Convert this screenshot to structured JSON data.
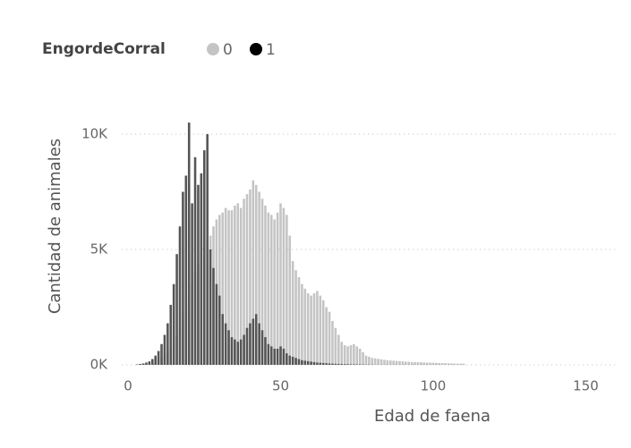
{
  "chart_data": {
    "type": "bar",
    "x_label": "Edad de faena",
    "y_label": "Cantidad de animales",
    "legend_title": "EngordeCorral",
    "xlim": [
      -2,
      160
    ],
    "xticks": [
      0,
      50,
      100,
      150
    ],
    "ylim": [
      0,
      11000
    ],
    "yticks": [
      {
        "value": 0,
        "label": "0K"
      },
      {
        "value": 5000,
        "label": "5K"
      },
      {
        "value": 10000,
        "label": "10K"
      }
    ],
    "grid": true,
    "x": [
      3,
      4,
      5,
      6,
      7,
      8,
      9,
      10,
      11,
      12,
      13,
      14,
      15,
      16,
      17,
      18,
      19,
      20,
      21,
      22,
      23,
      24,
      25,
      26,
      27,
      28,
      29,
      30,
      31,
      32,
      33,
      34,
      35,
      36,
      37,
      38,
      39,
      40,
      41,
      42,
      43,
      44,
      45,
      46,
      47,
      48,
      49,
      50,
      51,
      52,
      53,
      54,
      55,
      56,
      57,
      58,
      59,
      60,
      61,
      62,
      63,
      64,
      65,
      66,
      67,
      68,
      69,
      70,
      71,
      72,
      73,
      74,
      75,
      76,
      77,
      78,
      79,
      80,
      81,
      82,
      83,
      84,
      85,
      86,
      87,
      88,
      89,
      90,
      91,
      92,
      93,
      94,
      95,
      96,
      97,
      98,
      99,
      100,
      101,
      102,
      103,
      104,
      105,
      106,
      107,
      108,
      109,
      110
    ],
    "series": [
      {
        "name": "0",
        "color": "#c4c4c4",
        "values": [
          0,
          10,
          20,
          40,
          60,
          100,
          150,
          250,
          350,
          500,
          650,
          800,
          1000,
          1300,
          1600,
          2000,
          2500,
          3000,
          3500,
          4000,
          4400,
          4800,
          5200,
          5400,
          5600,
          6000,
          6300,
          6500,
          6600,
          6800,
          6700,
          6700,
          6900,
          7000,
          6800,
          7200,
          7400,
          7600,
          8000,
          7800,
          7500,
          7200,
          6900,
          6600,
          6500,
          6300,
          6600,
          7000,
          6800,
          6500,
          5600,
          4500,
          4100,
          3800,
          3500,
          3300,
          3100,
          3000,
          3100,
          3200,
          3000,
          2800,
          2500,
          2300,
          1900,
          1600,
          1300,
          1000,
          850,
          800,
          850,
          900,
          800,
          700,
          550,
          400,
          350,
          300,
          280,
          260,
          240,
          220,
          200,
          190,
          180,
          170,
          160,
          150,
          140,
          130,
          125,
          120,
          115,
          110,
          105,
          100,
          95,
          90,
          85,
          80,
          75,
          70,
          65,
          60,
          55,
          50,
          50,
          50
        ]
      },
      {
        "name": "1",
        "color": "#555555",
        "values": [
          20,
          40,
          60,
          100,
          150,
          250,
          400,
          600,
          900,
          1300,
          1800,
          2600,
          3500,
          4800,
          6000,
          7500,
          8200,
          10500,
          7000,
          9000,
          7800,
          8300,
          9300,
          10000,
          5000,
          4200,
          3500,
          3000,
          2200,
          1800,
          1500,
          1200,
          1100,
          1000,
          1100,
          1300,
          1600,
          1800,
          2000,
          2200,
          1800,
          1500,
          1200,
          900,
          800,
          700,
          700,
          800,
          700,
          500,
          400,
          350,
          300,
          250,
          200,
          180,
          160,
          140,
          120,
          100,
          90,
          80,
          70,
          60,
          50,
          45,
          40,
          35,
          30,
          28,
          25,
          22,
          20,
          18,
          15,
          12,
          10,
          10,
          5,
          5,
          5,
          5,
          5,
          5,
          5,
          5,
          5,
          5,
          5,
          5,
          5,
          5,
          5,
          5,
          5,
          5,
          5,
          5,
          5,
          5,
          5,
          5,
          5,
          5,
          5,
          5,
          5,
          5
        ]
      }
    ]
  }
}
